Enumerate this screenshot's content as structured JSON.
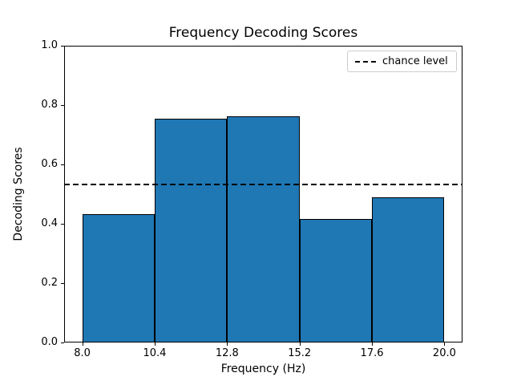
{
  "chart_data": {
    "type": "bar",
    "title": "Frequency Decoding Scores",
    "xlabel": "Frequency (Hz)",
    "ylabel": "Decoding Scores",
    "bin_edges": [
      8.0,
      10.4,
      12.8,
      15.2,
      17.6,
      20.0
    ],
    "values": [
      0.432,
      0.754,
      0.762,
      0.416,
      0.489
    ],
    "chance_level": 0.532,
    "xticks": [
      8.0,
      10.4,
      12.8,
      15.2,
      17.6,
      20.0
    ],
    "yticks": [
      0.0,
      0.2,
      0.4,
      0.6,
      0.8,
      1.0
    ],
    "xlim": [
      7.4,
      20.6
    ],
    "ylim": [
      0.0,
      1.0
    ],
    "grid": false,
    "bar_color": "#1f77b4",
    "bar_edge_color": "#000000",
    "line_color": "#000000",
    "legend": {
      "position": "upper right",
      "entries": [
        {
          "label": "chance level",
          "line_style": "dashed",
          "color": "#000000"
        }
      ]
    }
  }
}
